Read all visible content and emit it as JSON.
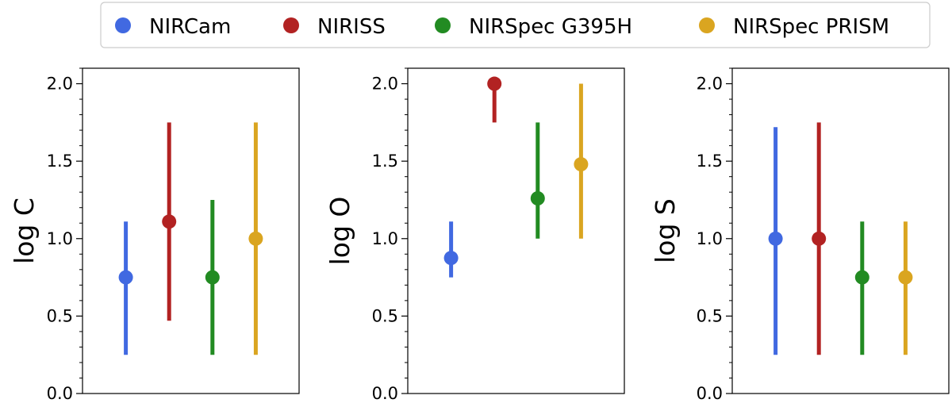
{
  "legend": {
    "placement": "top-center",
    "entries": [
      {
        "label": "NIRCam",
        "color": "#4169e1"
      },
      {
        "label": "NIRISS",
        "color": "#b22222"
      },
      {
        "label": "NIRSpec G395H",
        "color": "#228b22"
      },
      {
        "label": "NIRSpec PRISM",
        "color": "#daa520"
      }
    ]
  },
  "chart_data": [
    {
      "type": "scatter",
      "ylabel": "log C",
      "ylim": [
        0.0,
        2.1
      ],
      "yticks": [
        "0.0",
        "0.5",
        "1.0",
        "1.5",
        "2.0"
      ],
      "grid": false,
      "series": [
        {
          "name": "NIRCam",
          "value": 0.75,
          "low": 0.25,
          "high": 1.11
        },
        {
          "name": "NIRISS",
          "value": 1.11,
          "low": 0.47,
          "high": 1.75
        },
        {
          "name": "NIRSpec G395H",
          "value": 0.75,
          "low": 0.25,
          "high": 1.25
        },
        {
          "name": "NIRSpec PRISM",
          "value": 1.0,
          "low": 0.25,
          "high": 1.75
        }
      ]
    },
    {
      "type": "scatter",
      "ylabel": "log O",
      "ylim": [
        0.0,
        2.1
      ],
      "yticks": [
        "0.0",
        "0.5",
        "1.0",
        "1.5",
        "2.0"
      ],
      "grid": false,
      "series": [
        {
          "name": "NIRCam",
          "value": 0.875,
          "low": 0.75,
          "high": 1.11
        },
        {
          "name": "NIRISS",
          "value": 2.0,
          "low": 1.75,
          "high": 2.0
        },
        {
          "name": "NIRSpec G395H",
          "value": 1.26,
          "low": 1.0,
          "high": 1.75
        },
        {
          "name": "NIRSpec PRISM",
          "value": 1.48,
          "low": 1.0,
          "high": 2.0
        }
      ]
    },
    {
      "type": "scatter",
      "ylabel": "log S",
      "ylim": [
        0.0,
        2.1
      ],
      "yticks": [
        "0.0",
        "0.5",
        "1.0",
        "1.5",
        "2.0"
      ],
      "grid": false,
      "series": [
        {
          "name": "NIRCam",
          "value": 1.0,
          "low": 0.25,
          "high": 1.72
        },
        {
          "name": "NIRISS",
          "value": 1.0,
          "low": 0.25,
          "high": 1.75
        },
        {
          "name": "NIRSpec G395H",
          "value": 0.75,
          "low": 0.25,
          "high": 1.11
        },
        {
          "name": "NIRSpec PRISM",
          "value": 0.75,
          "low": 0.25,
          "high": 1.11
        }
      ]
    }
  ]
}
